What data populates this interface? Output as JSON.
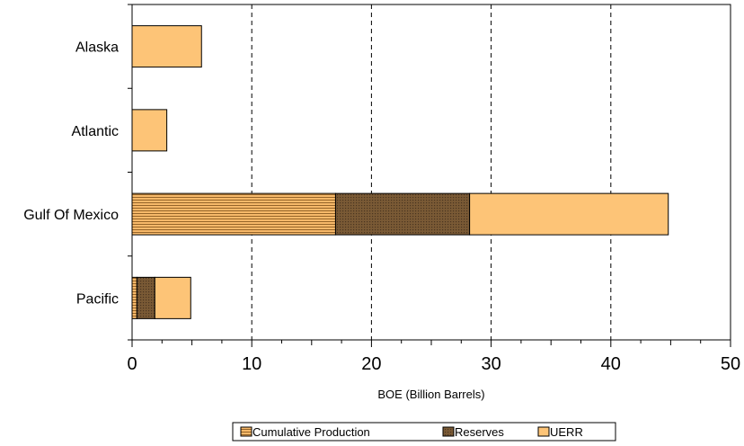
{
  "chart_data": {
    "type": "bar",
    "orientation": "horizontal",
    "stacked": true,
    "categories": [
      "Alaska",
      "Atlantic",
      "Gulf Of Mexico",
      "Pacific"
    ],
    "series": [
      {
        "name": "Cumulative Production",
        "values": [
          0,
          0,
          17.0,
          0.4
        ],
        "color": "#f7b96a",
        "pattern": "horizontal-lines"
      },
      {
        "name": "Reserves",
        "values": [
          0,
          0,
          11.2,
          1.5
        ],
        "color": "#7a5a35",
        "pattern": "dots"
      },
      {
        "name": "UERR",
        "values": [
          5.8,
          2.9,
          16.6,
          3.0
        ],
        "color": "#fdc477",
        "pattern": "solid"
      }
    ],
    "title": "",
    "xlabel": "BOE (Billion Barrels)",
    "ylabel": "",
    "xlim": [
      0,
      50
    ],
    "xticks": [
      0,
      10,
      20,
      30,
      40,
      50
    ],
    "xtick_labels": [
      "0",
      "10",
      "20",
      "30",
      "40",
      "50"
    ],
    "grid": "vertical dashed",
    "legend_position": "bottom-center"
  }
}
